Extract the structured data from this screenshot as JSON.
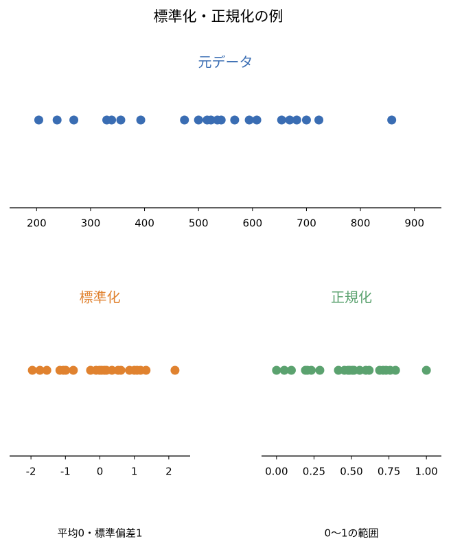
{
  "title": "標準化・正規化の例",
  "chart_data": [
    {
      "type": "strip",
      "title": "元データ",
      "color": "#3a6db3",
      "values": [
        204,
        238,
        269,
        330,
        339,
        356,
        393,
        474,
        500,
        516,
        523,
        535,
        542,
        567,
        594,
        608,
        654,
        669,
        682,
        700,
        723,
        858
      ],
      "xlim": [
        150,
        950
      ],
      "xticks": [
        200,
        300,
        400,
        500,
        600,
        700,
        800,
        900
      ]
    },
    {
      "type": "strip",
      "title": "標準化",
      "xlabel": "平均0・標準偏差1",
      "color": "#e0822f",
      "values": [
        -1.96,
        -1.74,
        -1.54,
        -1.16,
        -1.06,
        -0.99,
        -0.77,
        -0.27,
        -0.11,
        -0.01,
        0.05,
        0.13,
        0.19,
        0.35,
        0.53,
        0.61,
        0.86,
        1.0,
        1.08,
        1.18,
        1.34,
        2.18
      ],
      "xlim": [
        -2.62,
        2.62
      ],
      "xticks": [
        -2,
        -1,
        0,
        1,
        2
      ]
    },
    {
      "type": "strip",
      "title": "正規化",
      "xlabel": "0〜1の範囲",
      "color": "#5ba26f",
      "values": [
        0,
        0.052,
        0.099,
        0.193,
        0.206,
        0.232,
        0.289,
        0.413,
        0.453,
        0.477,
        0.488,
        0.506,
        0.517,
        0.555,
        0.596,
        0.618,
        0.688,
        0.711,
        0.731,
        0.758,
        0.794,
        1.0
      ],
      "xlim": [
        -0.1,
        1.1
      ],
      "xticks": [
        {
          "value": 0,
          "label": "0.00"
        },
        {
          "value": 0.25,
          "label": "0.25"
        },
        {
          "value": 0.5,
          "label": "0.50"
        },
        {
          "value": 0.75,
          "label": "0.75"
        },
        {
          "value": 1.0,
          "label": "1.00"
        }
      ]
    }
  ]
}
